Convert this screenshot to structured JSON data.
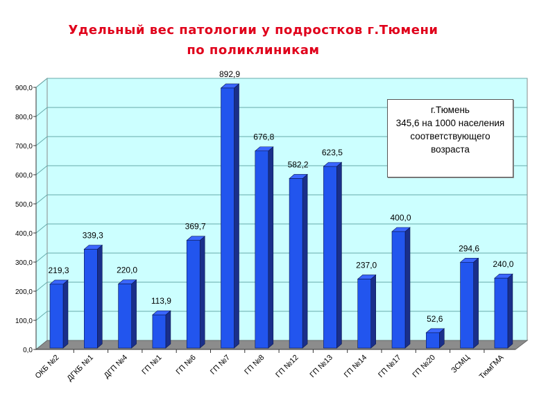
{
  "chart_data": {
    "type": "bar",
    "title": "Удельный вес патологии у подростков г.Тюмени",
    "subtitle": "по поликлиникам",
    "categories": [
      "ОКБ №2",
      "ДГКБ №1",
      "ДГП №4",
      "ГП №1",
      "ГП №6",
      "ГП №7",
      "ГП №8",
      "ГП №12",
      "ГП №13",
      "ГП №14",
      "ГП №17",
      "ГП №20",
      "ЗСМЦ",
      "ТюмГМА"
    ],
    "values": [
      219.3,
      339.3,
      220.0,
      113.9,
      369.7,
      892.9,
      676.8,
      582.2,
      623.5,
      237.0,
      400.0,
      52.6,
      294.6,
      240.0
    ],
    "value_labels": [
      "219,3",
      "339,3",
      "220,0",
      "113,9",
      "369,7",
      "892,9",
      "676,8",
      "582,2",
      "623,5",
      "237,0",
      "400,0",
      "52,6",
      "294,6",
      "240,0"
    ],
    "ylim": [
      0,
      900
    ],
    "yticks": [
      0,
      100,
      200,
      300,
      400,
      500,
      600,
      700,
      800,
      900
    ],
    "ytick_labels": [
      "0,0",
      "100,0",
      "200,0",
      "300,0",
      "400,0",
      "500,0",
      "600,0",
      "700,0",
      "800,0",
      "900,0"
    ],
    "grid": true,
    "xlabel": "",
    "ylabel": "",
    "bar_color": "#2255ee",
    "wall_color": "#ccffff",
    "annotation": [
      "г.Тюмень",
      "345,6 на 1000 населения",
      "соответствующего",
      "возраста"
    ]
  }
}
